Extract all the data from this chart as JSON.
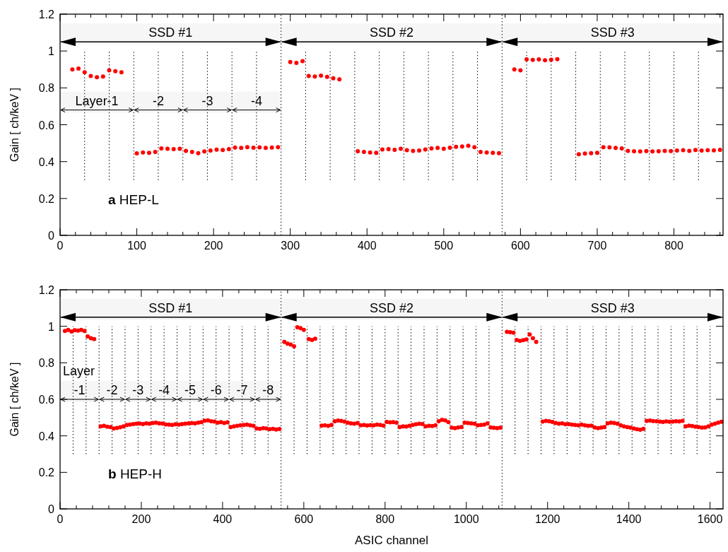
{
  "chart_data": [
    {
      "type": "scatter",
      "title": "a HEP-L",
      "ylabel": "Gain [ ch/keV ]",
      "color": "#ff0000",
      "marker": "circle",
      "xlim": [
        0,
        864
      ],
      "ylim": [
        0,
        1.2
      ],
      "xticks": [
        0,
        {
          "value": 20,
          "label": null
        },
        {
          "value": 40,
          "label": null
        },
        {
          "value": 60,
          "label": null
        },
        {
          "value": 80,
          "label": null
        },
        100,
        {
          "value": 120,
          "label": null
        },
        {
          "value": 140,
          "label": null
        },
        {
          "value": 160,
          "label": null
        },
        {
          "value": 180,
          "label": null
        },
        200,
        {
          "value": 220,
          "label": null
        },
        {
          "value": 240,
          "label": null
        },
        {
          "value": 260,
          "label": null
        },
        {
          "value": 280,
          "label": null
        },
        300,
        {
          "value": 320,
          "label": null
        },
        {
          "value": 340,
          "label": null
        },
        {
          "value": 360,
          "label": null
        },
        {
          "value": 380,
          "label": null
        },
        400,
        {
          "value": 420,
          "label": null
        },
        {
          "value": 440,
          "label": null
        },
        {
          "value": 460,
          "label": null
        },
        {
          "value": 480,
          "label": null
        },
        500,
        {
          "value": 520,
          "label": null
        },
        {
          "value": 540,
          "label": null
        },
        {
          "value": 560,
          "label": null
        },
        {
          "value": 580,
          "label": null
        },
        600,
        {
          "value": 620,
          "label": null
        },
        {
          "value": 640,
          "label": null
        },
        {
          "value": 660,
          "label": null
        },
        {
          "value": 680,
          "label": null
        },
        700,
        {
          "value": 720,
          "label": null
        },
        {
          "value": 740,
          "label": null
        },
        {
          "value": 760,
          "label": null
        },
        {
          "value": 780,
          "label": null
        },
        800,
        {
          "value": 820,
          "label": null
        },
        {
          "value": 840,
          "label": null
        },
        {
          "value": 860,
          "label": null
        }
      ],
      "yticks": [
        0,
        0.2,
        0.4,
        0.6,
        0.8,
        1,
        1.2
      ],
      "x": [
        16,
        24,
        32,
        40,
        48,
        56,
        64,
        72,
        80,
        100,
        108,
        116,
        124,
        132,
        140,
        148,
        156,
        164,
        172,
        180,
        188,
        196,
        204,
        212,
        220,
        228,
        236,
        244,
        252,
        260,
        268,
        276,
        284,
        300,
        308,
        316,
        324,
        332,
        340,
        348,
        356,
        364,
        388,
        396,
        404,
        412,
        420,
        428,
        436,
        444,
        452,
        460,
        468,
        476,
        484,
        492,
        500,
        508,
        516,
        524,
        532,
        540,
        548,
        556,
        564,
        572,
        592,
        600,
        608,
        616,
        624,
        632,
        640,
        648,
        676,
        684,
        692,
        700,
        708,
        716,
        724,
        732,
        740,
        748,
        756,
        764,
        772,
        780,
        788,
        796,
        804,
        812,
        820,
        828,
        836,
        844,
        852,
        860
      ],
      "values": [
        0.9,
        0.905,
        0.885,
        0.865,
        0.858,
        0.862,
        0.895,
        0.89,
        0.885,
        0.445,
        0.45,
        0.448,
        0.452,
        0.472,
        0.47,
        0.468,
        0.47,
        0.458,
        0.452,
        0.446,
        0.455,
        0.46,
        0.465,
        0.463,
        0.468,
        0.476,
        0.474,
        0.478,
        0.475,
        0.477,
        0.474,
        0.476,
        0.478,
        0.94,
        0.935,
        0.945,
        0.865,
        0.862,
        0.866,
        0.86,
        0.852,
        0.846,
        0.456,
        0.452,
        0.45,
        0.448,
        0.466,
        0.468,
        0.464,
        0.47,
        0.462,
        0.458,
        0.46,
        0.466,
        0.472,
        0.474,
        0.47,
        0.475,
        0.48,
        0.482,
        0.486,
        0.478,
        0.452,
        0.45,
        0.448,
        0.446,
        0.9,
        0.895,
        0.955,
        0.952,
        0.955,
        0.95,
        0.953,
        0.956,
        0.44,
        0.444,
        0.446,
        0.448,
        0.478,
        0.477,
        0.474,
        0.472,
        0.458,
        0.456,
        0.455,
        0.457,
        0.455,
        0.456,
        0.458,
        0.457,
        0.46,
        0.462,
        0.458,
        0.463,
        0.46,
        0.462,
        0.461,
        0.464
      ],
      "bands": [
        {
          "axis": "x",
          "from": 0,
          "to": 288,
          "label": "SSD #1"
        },
        {
          "axis": "x",
          "from": 288,
          "to": 576,
          "label": "SSD #2"
        },
        {
          "axis": "x",
          "from": 576,
          "to": 864,
          "label": "SSD #3"
        },
        {
          "axis": "x",
          "from": 0,
          "to": 96,
          "label": "Layer-1"
        },
        {
          "axis": "x",
          "from": 96,
          "to": 160,
          "label": "-2"
        },
        {
          "axis": "x",
          "from": 160,
          "to": 224,
          "label": "-3"
        },
        {
          "axis": "x",
          "from": 224,
          "to": 288,
          "label": "-4"
        }
      ],
      "ref_lines": [
        {
          "axis": "x",
          "value": 32,
          "line_style": "dotted"
        },
        {
          "axis": "x",
          "value": 64,
          "line_style": "dotted"
        },
        {
          "axis": "x",
          "value": 96,
          "line_style": "dotted"
        },
        {
          "axis": "x",
          "value": 128,
          "line_style": "dotted"
        },
        {
          "axis": "x",
          "value": 160,
          "line_style": "dotted"
        },
        {
          "axis": "x",
          "value": 192,
          "line_style": "dotted"
        },
        {
          "axis": "x",
          "value": 224,
          "line_style": "dotted"
        },
        {
          "axis": "x",
          "value": 256,
          "line_style": "dotted"
        },
        {
          "axis": "x",
          "value": 288,
          "line_style": "dotted"
        },
        {
          "axis": "x",
          "value": 320,
          "line_style": "dotted"
        },
        {
          "axis": "x",
          "value": 352,
          "line_style": "dotted"
        },
        {
          "axis": "x",
          "value": 384,
          "line_style": "dotted"
        },
        {
          "axis": "x",
          "value": 416,
          "line_style": "dotted"
        },
        {
          "axis": "x",
          "value": 448,
          "line_style": "dotted"
        },
        {
          "axis": "x",
          "value": 480,
          "line_style": "dotted"
        },
        {
          "axis": "x",
          "value": 512,
          "line_style": "dotted"
        },
        {
          "axis": "x",
          "value": 544,
          "line_style": "dotted"
        },
        {
          "axis": "x",
          "value": 576,
          "line_style": "dotted"
        },
        {
          "axis": "x",
          "value": 608,
          "line_style": "dotted"
        },
        {
          "axis": "x",
          "value": 640,
          "line_style": "dotted"
        },
        {
          "axis": "x",
          "value": 672,
          "line_style": "dotted"
        },
        {
          "axis": "x",
          "value": 704,
          "line_style": "dotted"
        },
        {
          "axis": "x",
          "value": 736,
          "line_style": "dotted"
        },
        {
          "axis": "x",
          "value": 768,
          "line_style": "dotted"
        },
        {
          "axis": "x",
          "value": 800,
          "line_style": "dotted"
        },
        {
          "axis": "x",
          "value": 832,
          "line_style": "dotted"
        }
      ]
    },
    {
      "type": "scatter",
      "title": "b HEP-H",
      "xlabel": "ASIC channel",
      "ylabel": "Gain [ ch/keV ]",
      "color": "#ff0000",
      "marker": "circle",
      "xlim": [
        0,
        1632
      ],
      "ylim": [
        0,
        1.2
      ],
      "annotations": [
        "Layer"
      ],
      "xticks": [
        0,
        {
          "value": 40,
          "label": null
        },
        {
          "value": 80,
          "label": null
        },
        {
          "value": 120,
          "label": null
        },
        {
          "value": 160,
          "label": null
        },
        200,
        {
          "value": 240,
          "label": null
        },
        {
          "value": 280,
          "label": null
        },
        {
          "value": 320,
          "label": null
        },
        {
          "value": 360,
          "label": null
        },
        400,
        {
          "value": 440,
          "label": null
        },
        {
          "value": 480,
          "label": null
        },
        {
          "value": 520,
          "label": null
        },
        {
          "value": 560,
          "label": null
        },
        600,
        {
          "value": 640,
          "label": null
        },
        {
          "value": 680,
          "label": null
        },
        {
          "value": 720,
          "label": null
        },
        {
          "value": 760,
          "label": null
        },
        800,
        {
          "value": 840,
          "label": null
        },
        {
          "value": 880,
          "label": null
        },
        {
          "value": 920,
          "label": null
        },
        {
          "value": 960,
          "label": null
        },
        1000,
        {
          "value": 1040,
          "label": null
        },
        {
          "value": 1080,
          "label": null
        },
        {
          "value": 1120,
          "label": null
        },
        {
          "value": 1160,
          "label": null
        },
        1200,
        {
          "value": 1240,
          "label": null
        },
        {
          "value": 1280,
          "label": null
        },
        {
          "value": 1320,
          "label": null
        },
        {
          "value": 1360,
          "label": null
        },
        1400,
        {
          "value": 1440,
          "label": null
        },
        {
          "value": 1480,
          "label": null
        },
        {
          "value": 1520,
          "label": null
        },
        {
          "value": 1560,
          "label": null
        },
        1600
      ],
      "yticks": [
        0,
        0.2,
        0.4,
        0.6,
        0.8,
        1,
        1.2
      ],
      "x": [
        12,
        20,
        28,
        36,
        44,
        52,
        60,
        68,
        76,
        84,
        100,
        108,
        116,
        124,
        132,
        140,
        148,
        156,
        164,
        172,
        180,
        188,
        196,
        204,
        212,
        220,
        228,
        236,
        244,
        252,
        260,
        268,
        276,
        284,
        292,
        300,
        308,
        316,
        324,
        332,
        340,
        348,
        356,
        364,
        372,
        380,
        388,
        396,
        404,
        412,
        420,
        428,
        436,
        444,
        452,
        460,
        468,
        476,
        484,
        492,
        500,
        508,
        516,
        524,
        532,
        540,
        552,
        560,
        568,
        576,
        584,
        592,
        600,
        612,
        620,
        628,
        644,
        652,
        660,
        668,
        676,
        684,
        692,
        700,
        708,
        716,
        724,
        732,
        740,
        748,
        756,
        764,
        772,
        780,
        788,
        796,
        804,
        812,
        820,
        828,
        836,
        844,
        852,
        860,
        868,
        876,
        884,
        892,
        900,
        908,
        916,
        924,
        932,
        940,
        948,
        956,
        964,
        972,
        980,
        988,
        996,
        1004,
        1012,
        1020,
        1028,
        1036,
        1044,
        1052,
        1060,
        1068,
        1076,
        1084,
        1100,
        1108,
        1116,
        1124,
        1132,
        1140,
        1148,
        1156,
        1164,
        1172,
        1188,
        1196,
        1204,
        1212,
        1220,
        1228,
        1236,
        1244,
        1252,
        1260,
        1268,
        1276,
        1284,
        1292,
        1300,
        1308,
        1316,
        1324,
        1332,
        1340,
        1348,
        1356,
        1364,
        1372,
        1380,
        1388,
        1396,
        1404,
        1412,
        1420,
        1428,
        1436,
        1444,
        1452,
        1460,
        1468,
        1476,
        1484,
        1492,
        1500,
        1508,
        1516,
        1524,
        1532,
        1540,
        1548,
        1556,
        1564,
        1572,
        1580,
        1588,
        1596,
        1604,
        1612,
        1620,
        1628
      ],
      "values": [
        0.975,
        0.98,
        0.972,
        0.978,
        0.976,
        0.98,
        0.975,
        0.945,
        0.935,
        0.93,
        0.452,
        0.455,
        0.45,
        0.448,
        0.44,
        0.443,
        0.447,
        0.452,
        0.46,
        0.462,
        0.465,
        0.466,
        0.467,
        0.465,
        0.468,
        0.466,
        0.47,
        0.472,
        0.468,
        0.467,
        0.463,
        0.462,
        0.46,
        0.464,
        0.462,
        0.465,
        0.466,
        0.468,
        0.47,
        0.468,
        0.472,
        0.475,
        0.483,
        0.485,
        0.48,
        0.478,
        0.472,
        0.475,
        0.47,
        0.474,
        0.448,
        0.452,
        0.455,
        0.458,
        0.46,
        0.462,
        0.458,
        0.455,
        0.44,
        0.438,
        0.442,
        0.44,
        0.436,
        0.438,
        0.435,
        0.437,
        0.915,
        0.905,
        0.9,
        0.89,
        0.995,
        0.99,
        0.98,
        0.93,
        0.925,
        0.932,
        0.456,
        0.458,
        0.455,
        0.46,
        0.48,
        0.484,
        0.482,
        0.478,
        0.472,
        0.468,
        0.466,
        0.47,
        0.458,
        0.46,
        0.457,
        0.459,
        0.458,
        0.462,
        0.46,
        0.456,
        0.476,
        0.474,
        0.475,
        0.472,
        0.448,
        0.452,
        0.451,
        0.455,
        0.46,
        0.464,
        0.466,
        0.465,
        0.452,
        0.455,
        0.454,
        0.458,
        0.48,
        0.488,
        0.485,
        0.475,
        0.445,
        0.442,
        0.446,
        0.448,
        0.472,
        0.47,
        0.468,
        0.466,
        0.458,
        0.46,
        0.462,
        0.468,
        0.446,
        0.444,
        0.442,
        0.445,
        0.97,
        0.968,
        0.965,
        0.925,
        0.92,
        0.924,
        0.928,
        0.955,
        0.935,
        0.915,
        0.478,
        0.482,
        0.48,
        0.476,
        0.47,
        0.466,
        0.468,
        0.464,
        0.465,
        0.462,
        0.46,
        0.458,
        0.462,
        0.458,
        0.455,
        0.456,
        0.446,
        0.442,
        0.445,
        0.448,
        0.468,
        0.472,
        0.47,
        0.466,
        0.458,
        0.452,
        0.448,
        0.445,
        0.44,
        0.436,
        0.434,
        0.438,
        0.482,
        0.484,
        0.481,
        0.48,
        0.478,
        0.476,
        0.479,
        0.477,
        0.478,
        0.48,
        0.479,
        0.482,
        0.452,
        0.456,
        0.454,
        0.45,
        0.448,
        0.445,
        0.446,
        0.452,
        0.462,
        0.466,
        0.472,
        0.477
      ],
      "bands": [
        {
          "axis": "x",
          "from": 0,
          "to": 544,
          "label": "SSD #1"
        },
        {
          "axis": "x",
          "from": 544,
          "to": 1088,
          "label": "SSD #2"
        },
        {
          "axis": "x",
          "from": 1088,
          "to": 1632,
          "label": "SSD #3"
        },
        {
          "axis": "x",
          "from": 0,
          "to": 96,
          "label": "-1"
        },
        {
          "axis": "x",
          "from": 96,
          "to": 160,
          "label": "-2"
        },
        {
          "axis": "x",
          "from": 160,
          "to": 224,
          "label": "-3"
        },
        {
          "axis": "x",
          "from": 224,
          "to": 288,
          "label": "-4"
        },
        {
          "axis": "x",
          "from": 288,
          "to": 352,
          "label": "-5"
        },
        {
          "axis": "x",
          "from": 352,
          "to": 416,
          "label": "-6"
        },
        {
          "axis": "x",
          "from": 416,
          "to": 480,
          "label": "-7"
        },
        {
          "axis": "x",
          "from": 480,
          "to": 544,
          "label": "-8"
        }
      ],
      "ref_lines": [
        {
          "axis": "x",
          "value": 32,
          "line_style": "dotted"
        },
        {
          "axis": "x",
          "value": 64,
          "line_style": "dotted"
        },
        {
          "axis": "x",
          "value": 96,
          "line_style": "dotted"
        },
        {
          "axis": "x",
          "value": 128,
          "line_style": "dotted"
        },
        {
          "axis": "x",
          "value": 160,
          "line_style": "dotted"
        },
        {
          "axis": "x",
          "value": 192,
          "line_style": "dotted"
        },
        {
          "axis": "x",
          "value": 224,
          "line_style": "dotted"
        },
        {
          "axis": "x",
          "value": 256,
          "line_style": "dotted"
        },
        {
          "axis": "x",
          "value": 288,
          "line_style": "dotted"
        },
        {
          "axis": "x",
          "value": 320,
          "line_style": "dotted"
        },
        {
          "axis": "x",
          "value": 352,
          "line_style": "dotted"
        },
        {
          "axis": "x",
          "value": 384,
          "line_style": "dotted"
        },
        {
          "axis": "x",
          "value": 416,
          "line_style": "dotted"
        },
        {
          "axis": "x",
          "value": 448,
          "line_style": "dotted"
        },
        {
          "axis": "x",
          "value": 480,
          "line_style": "dotted"
        },
        {
          "axis": "x",
          "value": 512,
          "line_style": "dotted"
        },
        {
          "axis": "x",
          "value": 544,
          "line_style": "dotted"
        },
        {
          "axis": "x",
          "value": 576,
          "line_style": "dotted"
        },
        {
          "axis": "x",
          "value": 608,
          "line_style": "dotted"
        },
        {
          "axis": "x",
          "value": 640,
          "line_style": "dotted"
        },
        {
          "axis": "x",
          "value": 672,
          "line_style": "dotted"
        },
        {
          "axis": "x",
          "value": 704,
          "line_style": "dotted"
        },
        {
          "axis": "x",
          "value": 736,
          "line_style": "dotted"
        },
        {
          "axis": "x",
          "value": 768,
          "line_style": "dotted"
        },
        {
          "axis": "x",
          "value": 800,
          "line_style": "dotted"
        },
        {
          "axis": "x",
          "value": 832,
          "line_style": "dotted"
        },
        {
          "axis": "x",
          "value": 864,
          "line_style": "dotted"
        },
        {
          "axis": "x",
          "value": 896,
          "line_style": "dotted"
        },
        {
          "axis": "x",
          "value": 928,
          "line_style": "dotted"
        },
        {
          "axis": "x",
          "value": 960,
          "line_style": "dotted"
        },
        {
          "axis": "x",
          "value": 992,
          "line_style": "dotted"
        },
        {
          "axis": "x",
          "value": 1024,
          "line_style": "dotted"
        },
        {
          "axis": "x",
          "value": 1056,
          "line_style": "dotted"
        },
        {
          "axis": "x",
          "value": 1088,
          "line_style": "dotted"
        },
        {
          "axis": "x",
          "value": 1120,
          "line_style": "dotted"
        },
        {
          "axis": "x",
          "value": 1152,
          "line_style": "dotted"
        },
        {
          "axis": "x",
          "value": 1184,
          "line_style": "dotted"
        },
        {
          "axis": "x",
          "value": 1216,
          "line_style": "dotted"
        },
        {
          "axis": "x",
          "value": 1248,
          "line_style": "dotted"
        },
        {
          "axis": "x",
          "value": 1280,
          "line_style": "dotted"
        },
        {
          "axis": "x",
          "value": 1312,
          "line_style": "dotted"
        },
        {
          "axis": "x",
          "value": 1344,
          "line_style": "dotted"
        },
        {
          "axis": "x",
          "value": 1376,
          "line_style": "dotted"
        },
        {
          "axis": "x",
          "value": 1408,
          "line_style": "dotted"
        },
        {
          "axis": "x",
          "value": 1440,
          "line_style": "dotted"
        },
        {
          "axis": "x",
          "value": 1472,
          "line_style": "dotted"
        },
        {
          "axis": "x",
          "value": 1504,
          "line_style": "dotted"
        },
        {
          "axis": "x",
          "value": 1536,
          "line_style": "dotted"
        },
        {
          "axis": "x",
          "value": 1568,
          "line_style": "dotted"
        },
        {
          "axis": "x",
          "value": 1600,
          "line_style": "dotted"
        }
      ]
    }
  ]
}
